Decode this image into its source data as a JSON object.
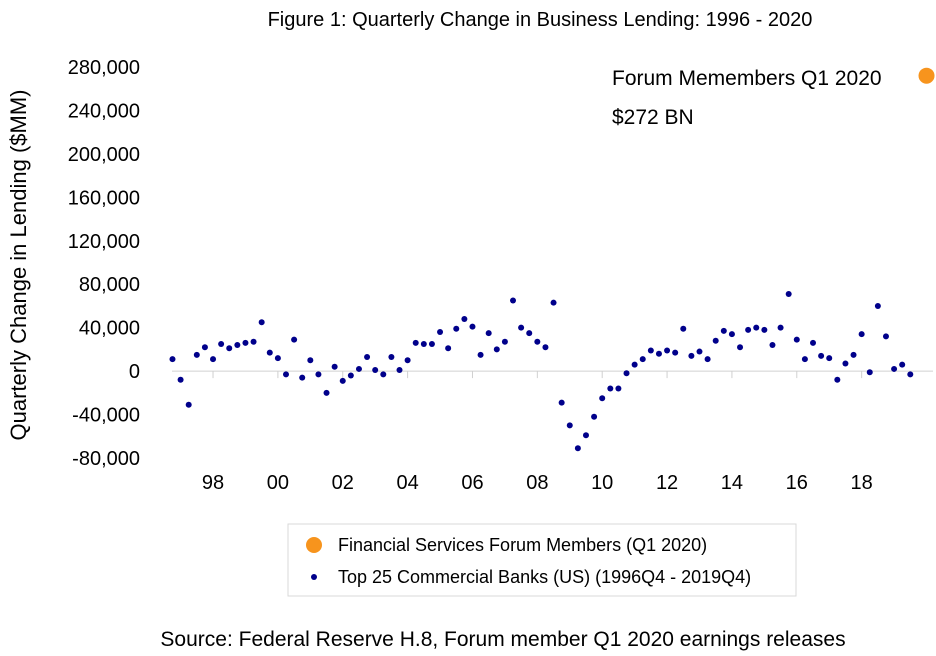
{
  "chart_data": {
    "type": "scatter",
    "title": "Figure 1: Quarterly Change in Business Lending: 1996 - 2020",
    "ylabel": "Quarterly Change in Lending ($MM)",
    "xlabel": "",
    "ylim": [
      -80000,
      280000
    ],
    "yticks": [
      280000,
      240000,
      200000,
      160000,
      120000,
      80000,
      40000,
      0,
      -40000,
      -80000
    ],
    "ytick_labels": [
      "280,000",
      "240,000",
      "200,000",
      "160,000",
      "120,000",
      "80,000",
      "40,000",
      "0",
      "-40,000",
      "-80,000"
    ],
    "xlim": [
      1996.55,
      2020.2
    ],
    "xticks": [
      1998,
      2000,
      2002,
      2004,
      2006,
      2008,
      2010,
      2012,
      2014,
      2016,
      2018
    ],
    "xtick_labels": [
      "98",
      "00",
      "02",
      "04",
      "06",
      "08",
      "10",
      "12",
      "14",
      "16",
      "18"
    ],
    "grid": false,
    "legend_position": "bottom",
    "series": [
      {
        "name": "Financial Services Forum Members (Q1 2020)",
        "color": "#f7941d",
        "marker": "large-circle",
        "points": [
          [
            2020.0,
            272000
          ]
        ]
      },
      {
        "name": "Top 25 Commercial Banks (US) (1996Q4 - 2019Q4)",
        "color": "#00008b",
        "marker": "small-circle",
        "points": [
          [
            1996.75,
            11000
          ],
          [
            1997.0,
            -8000
          ],
          [
            1997.25,
            -31000
          ],
          [
            1997.5,
            15000
          ],
          [
            1997.75,
            22000
          ],
          [
            1998.0,
            11000
          ],
          [
            1998.25,
            25000
          ],
          [
            1998.5,
            21000
          ],
          [
            1998.75,
            24000
          ],
          [
            1999.0,
            26000
          ],
          [
            1999.25,
            27000
          ],
          [
            1999.5,
            45000
          ],
          [
            1999.75,
            17000
          ],
          [
            2000.0,
            12000
          ],
          [
            2000.25,
            -3000
          ],
          [
            2000.5,
            29000
          ],
          [
            2000.75,
            -6000
          ],
          [
            2001.0,
            10000
          ],
          [
            2001.25,
            -3000
          ],
          [
            2001.5,
            -20000
          ],
          [
            2001.75,
            4000
          ],
          [
            2002.0,
            -9000
          ],
          [
            2002.25,
            -4000
          ],
          [
            2002.5,
            2000
          ],
          [
            2002.75,
            13000
          ],
          [
            2003.0,
            1000
          ],
          [
            2003.25,
            -3000
          ],
          [
            2003.5,
            13000
          ],
          [
            2003.75,
            1000
          ],
          [
            2004.0,
            10000
          ],
          [
            2004.25,
            26000
          ],
          [
            2004.5,
            25000
          ],
          [
            2004.75,
            25000
          ],
          [
            2005.0,
            36000
          ],
          [
            2005.25,
            21000
          ],
          [
            2005.5,
            39000
          ],
          [
            2005.75,
            48000
          ],
          [
            2006.0,
            41000
          ],
          [
            2006.25,
            15000
          ],
          [
            2006.5,
            35000
          ],
          [
            2006.75,
            20000
          ],
          [
            2007.0,
            27000
          ],
          [
            2007.25,
            65000
          ],
          [
            2007.5,
            40000
          ],
          [
            2007.75,
            35000
          ],
          [
            2008.0,
            27000
          ],
          [
            2008.25,
            22000
          ],
          [
            2008.5,
            63000
          ],
          [
            2008.75,
            -29000
          ],
          [
            2009.0,
            -50000
          ],
          [
            2009.25,
            -71000
          ],
          [
            2009.5,
            -59000
          ],
          [
            2009.75,
            -42000
          ],
          [
            2010.0,
            -25000
          ],
          [
            2010.25,
            -16000
          ],
          [
            2010.5,
            -16000
          ],
          [
            2010.75,
            -2000
          ],
          [
            2011.0,
            6000
          ],
          [
            2011.25,
            11000
          ],
          [
            2011.5,
            19000
          ],
          [
            2011.75,
            16000
          ],
          [
            2012.0,
            19000
          ],
          [
            2012.25,
            17000
          ],
          [
            2012.5,
            39000
          ],
          [
            2012.75,
            14000
          ],
          [
            2013.0,
            18000
          ],
          [
            2013.25,
            11000
          ],
          [
            2013.5,
            28000
          ],
          [
            2013.75,
            37000
          ],
          [
            2014.0,
            34000
          ],
          [
            2014.25,
            22000
          ],
          [
            2014.5,
            38000
          ],
          [
            2014.75,
            40000
          ],
          [
            2015.0,
            38000
          ],
          [
            2015.25,
            24000
          ],
          [
            2015.5,
            40000
          ],
          [
            2015.75,
            71000
          ],
          [
            2016.0,
            29000
          ],
          [
            2016.25,
            11000
          ],
          [
            2016.5,
            26000
          ],
          [
            2016.75,
            14000
          ],
          [
            2017.0,
            12000
          ],
          [
            2017.25,
            -8000
          ],
          [
            2017.5,
            7000
          ],
          [
            2017.75,
            15000
          ],
          [
            2018.0,
            34000
          ],
          [
            2018.25,
            -1000
          ],
          [
            2018.5,
            60000
          ],
          [
            2018.75,
            32000
          ],
          [
            2019.0,
            2000
          ],
          [
            2019.25,
            6000
          ],
          [
            2019.5,
            -3000
          ]
        ]
      }
    ],
    "annotation": {
      "line1": "Forum Memembers Q1 2020",
      "line2": "$272 BN"
    }
  },
  "source": "Source: Federal Reserve H.8, Forum member Q1 2020 earnings releases"
}
